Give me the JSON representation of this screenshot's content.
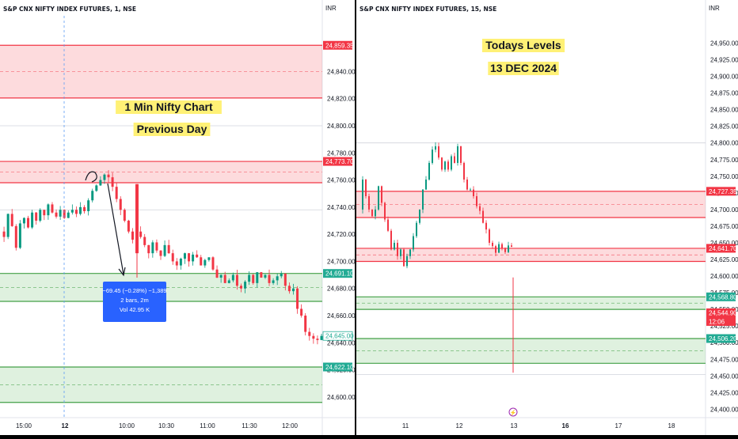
{
  "chart_data": [
    {
      "type": "candlestick",
      "title": "S&P CNX NIFTY INDEX FUTURES, 1, NSE",
      "currency": "INR",
      "annotation_title": [
        "1 Min Nifty Chart",
        "Previous Day"
      ],
      "ylim": [
        24590,
        24870
      ],
      "y_ticks": [
        24600,
        24620,
        24640,
        24660,
        24680,
        24700,
        24720,
        24740,
        24760,
        24780,
        24800,
        24820,
        24840
      ],
      "x_ticks": [
        "15:00",
        "12",
        "10:00",
        "10:30",
        "11:00",
        "11:30",
        "12:00"
      ],
      "price_labels": [
        {
          "value": 24859.35,
          "text": "24,859.35",
          "color": "#f23645"
        },
        {
          "value": 24773.7,
          "text": "24,773.70",
          "color": "#f23645"
        },
        {
          "value": 24691.1,
          "text": "24,691.10",
          "color": "#22ab94"
        },
        {
          "value": 24645.0,
          "text": "24,645.00",
          "color": "#ffffff",
          "text_color": "#22ab94"
        },
        {
          "value": 24622.1,
          "text": "24,622.10",
          "color": "#22ab94"
        }
      ],
      "zones": [
        {
          "top": 24859.35,
          "bottom": 24820.5,
          "color": "red"
        },
        {
          "top": 24773.7,
          "bottom": 24758,
          "color": "red"
        },
        {
          "top": 24691.1,
          "bottom": 24670.5,
          "color": "green"
        },
        {
          "top": 24622.1,
          "bottom": 24596,
          "color": "green"
        }
      ],
      "measure_tooltip": [
        "−69.45 (−0.28%) −1,389",
        "2 bars, 2m",
        "Vol 42.95 K"
      ],
      "price_path": [
        [
          24722,
          24718,
          24735,
          24726,
          24710,
          24728,
          24732,
          24725,
          24736,
          24730,
          24738,
          24734,
          24742,
          24736,
          24733,
          24738,
          24732,
          24736,
          24738,
          24735,
          24740,
          24737,
          24745,
          24752,
          24756,
          24760,
          24764,
          24762,
          24755,
          24746,
          24738,
          24730,
          24722,
          24716,
          24722,
          24718,
          24712,
          24706,
          24714,
          24708,
          24704,
          24712,
          24706,
          24700,
          24697,
          24702,
          24706,
          24700,
          24705,
          24703,
          24697,
          24701,
          24703,
          24694,
          24688,
          24690,
          24684,
          24686,
          24690,
          24682,
          24680,
          24685,
          24690,
          24684,
          24692,
          24688,
          24690,
          24684,
          24686,
          24689,
          24691,
          24682,
          24678,
          24680,
          24665,
          24660,
          24648,
          24645,
          24643,
          24642,
          24645
        ]
      ],
      "spike": {
        "open": 24706,
        "high": 24757,
        "low": 24688
      }
    },
    {
      "type": "candlestick",
      "title": "S&P CNX NIFTY INDEX FUTURES, 15, NSE",
      "currency": "INR",
      "annotation_title": [
        "Todays Levels",
        "13 DEC 2024"
      ],
      "ylim": [
        24385,
        24985
      ],
      "y_ticks": [
        24400,
        24425,
        24450,
        24475,
        24500,
        24525,
        24550,
        24575,
        24600,
        24625,
        24650,
        24675,
        24700,
        24725,
        24750,
        24775,
        24800,
        24825,
        24850,
        24875,
        24900,
        24925,
        24950
      ],
      "x_ticks": [
        "11",
        "12",
        "13",
        "16",
        "17",
        "18"
      ],
      "price_labels": [
        {
          "value": 24727.35,
          "text": "24,727.35",
          "color": "#f23645"
        },
        {
          "value": 24641.7,
          "text": "24,641.70",
          "color": "#f23645"
        },
        {
          "value": 24568.8,
          "text": "24,568.80",
          "color": "#22ab94"
        },
        {
          "value": 24544.9,
          "text": "24,544.90",
          "color": "#f23645",
          "sub": "12:06"
        },
        {
          "value": 24506.2,
          "text": "24,506.20",
          "color": "#22ab94"
        }
      ],
      "zones": [
        {
          "top": 24727.35,
          "bottom": 24688,
          "color": "red"
        },
        {
          "top": 24641.7,
          "bottom": 24622,
          "color": "red"
        },
        {
          "top": 24568.8,
          "bottom": 24550,
          "color": "green"
        },
        {
          "top": 24506.2,
          "bottom": 24469,
          "color": "green"
        }
      ],
      "price_path": [
        [
          24700,
          24745,
          24720,
          24700,
          24690,
          24700,
          24735,
          24710,
          24685,
          24668,
          24640,
          24650,
          24630,
          24640,
          24615,
          24630,
          24640,
          24660,
          24680,
          24700,
          24730,
          24745,
          24770,
          24790,
          24795,
          24778,
          24760,
          24772,
          24760,
          24780,
          24770,
          24795,
          24770,
          24745,
          24730,
          24730,
          24720,
          24705,
          24698,
          24680,
          24670,
          24650,
          24645,
          24635,
          24648,
          24642,
          24636,
          24646,
          24644
        ]
      ],
      "spike": {
        "high": 24598,
        "low": 24455
      }
    }
  ]
}
